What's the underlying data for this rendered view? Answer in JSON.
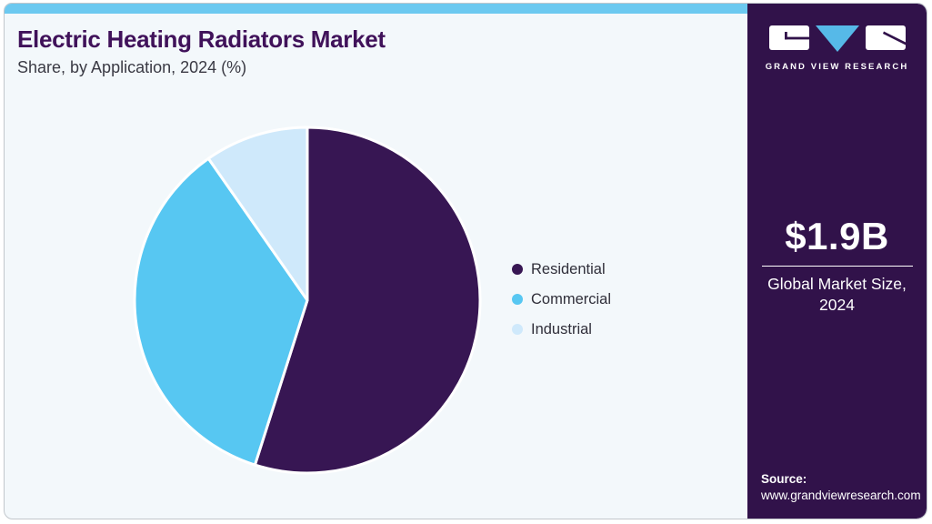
{
  "header": {
    "title": "Electric Heating Radiators Market",
    "subtitle": "Share, by Application, 2024 (%)"
  },
  "chart_data": {
    "type": "pie",
    "title": "Electric Heating Radiators Market Share, by Application, 2024 (%)",
    "unit": "%",
    "direction": "clockwise",
    "start_angle_deg": 0,
    "legend_position": "right",
    "slices": [
      {
        "label": "Residential",
        "value": 54.9,
        "color": "#371653"
      },
      {
        "label": "Commercial",
        "value": 35.4,
        "color": "#57c7f2"
      },
      {
        "label": "Industrial",
        "value": 9.7,
        "color": "#cfe9fb"
      }
    ]
  },
  "brand_panel": {
    "logo_text": "GRAND VIEW RESEARCH",
    "market_size_value": "$1.9B",
    "market_size_caption": "Global Market Size, 2024",
    "source_label": "Source:",
    "source_url": "www.grandviewresearch.com",
    "background_color": "#31124a",
    "logo_triangle_color": "#56b9e8"
  },
  "colors": {
    "title_text": "#40125a",
    "subtitle_text": "#3a3a44",
    "card_background": "#f3f8fb",
    "top_accent_bar": "#6cc9f0",
    "legend_text": "#302f3a",
    "slice_border": "#ffffff"
  }
}
